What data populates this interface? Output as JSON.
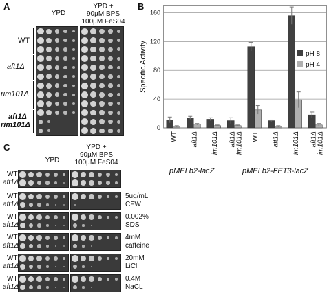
{
  "panel_a": {
    "letter": "A",
    "headers": {
      "left": "YPD",
      "right_line1": "YPD +",
      "right_line2": "90µM BPS",
      "right_line3": "100µM FeS04"
    },
    "strains": [
      {
        "label": "WT",
        "italic": false
      },
      {
        "label": "aft1Δ",
        "italic": true
      },
      {
        "label": "rim101Δ",
        "italic": true
      },
      {
        "label_line1": "aft1Δ",
        "label_line2": "rim101Δ",
        "italic": true
      }
    ]
  },
  "panel_b": {
    "letter": "B",
    "group_labels": [
      "pMELb2-lacZ",
      "pMELb2-FET3-lacZ"
    ]
  },
  "chart_data": {
    "type": "bar",
    "ylabel": "Specific Activity",
    "ylim": [
      0,
      170
    ],
    "yticks": [
      0,
      40,
      80,
      120,
      160
    ],
    "grid": true,
    "legend_position": "right",
    "categories": [
      "WT",
      "aft1Δ",
      "rim101Δ",
      "aft1Δ rim101Δ",
      "WT",
      "aft1Δ",
      "rim101Δ",
      "aft1Δ rim101Δ"
    ],
    "series": [
      {
        "name": "pH 8",
        "color": "#404040",
        "values": [
          11,
          14,
          12,
          10,
          113,
          10,
          156,
          18
        ],
        "errors": [
          4,
          2,
          2,
          4,
          6,
          1,
          12,
          4
        ]
      },
      {
        "name": "pH 4",
        "color": "#b0b0b0",
        "values": [
          2,
          5,
          3,
          3,
          25,
          2,
          39,
          4
        ],
        "errors": [
          1,
          1,
          1,
          1,
          6,
          1,
          11,
          2
        ]
      }
    ]
  },
  "panel_c": {
    "letter": "C",
    "headers": {
      "left": "YPD",
      "right_line1": "YPD +",
      "right_line2": "90µM BPS",
      "right_line3": "100µM FeS04"
    },
    "rows": [
      {
        "wt": "WT",
        "mut": "aft1Δ",
        "cond1": "",
        "cond2": ""
      },
      {
        "wt": "WT",
        "mut": "aft1Δ",
        "cond1": "5ug/mL",
        "cond2": "CFW"
      },
      {
        "wt": "WT",
        "mut": "aft1Δ",
        "cond1": "0.002%",
        "cond2": "SDS"
      },
      {
        "wt": "WT",
        "mut": "aft1Δ",
        "cond1": "4mM",
        "cond2": "caffeine"
      },
      {
        "wt": "WT",
        "mut": "aft1Δ",
        "cond1": "20mM",
        "cond2": "LiCl"
      },
      {
        "wt": "WT",
        "mut": "aft1Δ",
        "cond1": "0.4M",
        "cond2": "NaCL"
      }
    ]
  }
}
